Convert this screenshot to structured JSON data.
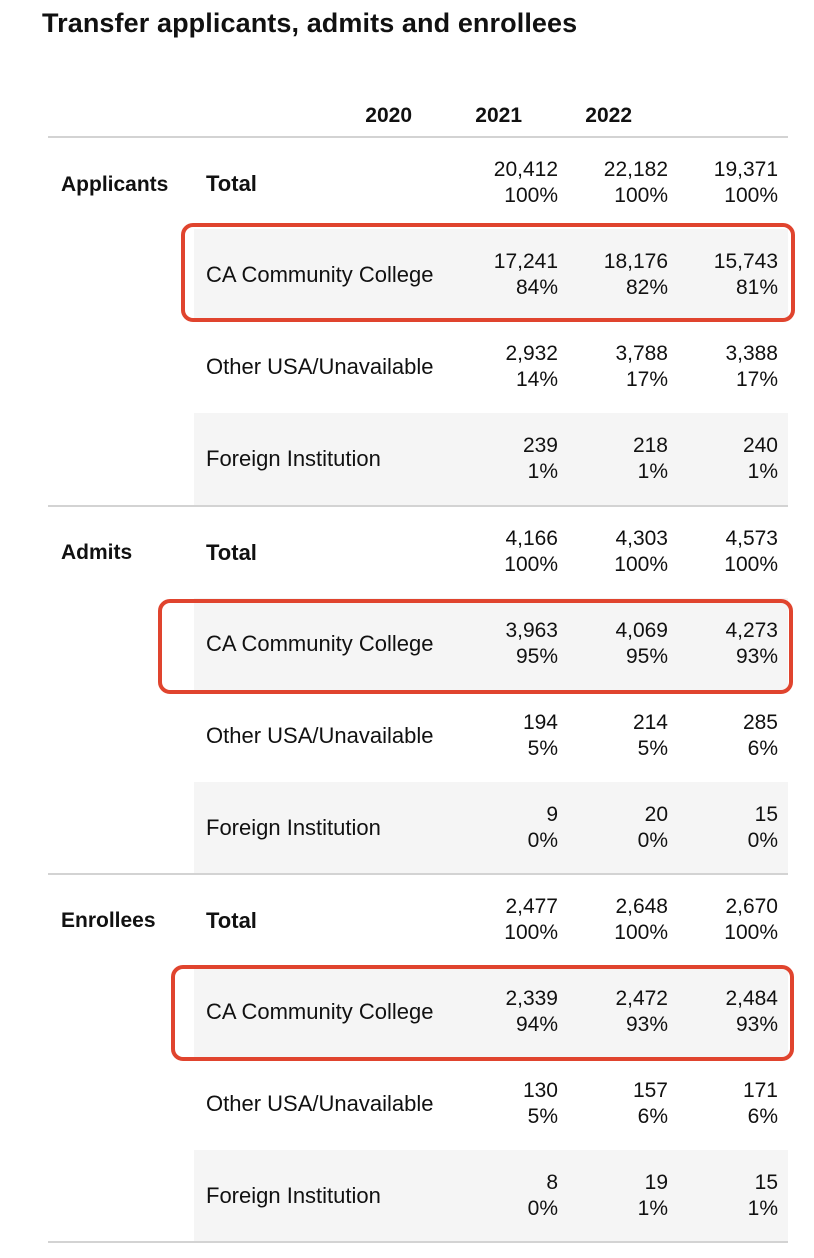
{
  "title": "Transfer applicants, admits and enrollees",
  "years": [
    "2020",
    "2021",
    "2022"
  ],
  "groups": [
    {
      "label": "Applicants",
      "rows": [
        {
          "label": "Total",
          "values": [
            [
              "20,412",
              "100%"
            ],
            [
              "22,182",
              "100%"
            ],
            [
              "19,371",
              "100%"
            ]
          ]
        },
        {
          "label": "CA Community College",
          "values": [
            [
              "17,241",
              "84%"
            ],
            [
              "18,176",
              "82%"
            ],
            [
              "15,743",
              "81%"
            ]
          ]
        },
        {
          "label": "Other USA/Unavailable",
          "values": [
            [
              "2,932",
              "14%"
            ],
            [
              "3,788",
              "17%"
            ],
            [
              "3,388",
              "17%"
            ]
          ]
        },
        {
          "label": "Foreign Institution",
          "values": [
            [
              "239",
              "1%"
            ],
            [
              "218",
              "1%"
            ],
            [
              "240",
              "1%"
            ]
          ]
        }
      ]
    },
    {
      "label": "Admits",
      "rows": [
        {
          "label": "Total",
          "values": [
            [
              "4,166",
              "100%"
            ],
            [
              "4,303",
              "100%"
            ],
            [
              "4,573",
              "100%"
            ]
          ]
        },
        {
          "label": "CA Community College",
          "values": [
            [
              "3,963",
              "95%"
            ],
            [
              "4,069",
              "95%"
            ],
            [
              "4,273",
              "93%"
            ]
          ]
        },
        {
          "label": "Other USA/Unavailable",
          "values": [
            [
              "194",
              "5%"
            ],
            [
              "214",
              "5%"
            ],
            [
              "285",
              "6%"
            ]
          ]
        },
        {
          "label": "Foreign Institution",
          "values": [
            [
              "9",
              "0%"
            ],
            [
              "20",
              "0%"
            ],
            [
              "15",
              "0%"
            ]
          ]
        }
      ]
    },
    {
      "label": "Enrollees",
      "rows": [
        {
          "label": "Total",
          "values": [
            [
              "2,477",
              "100%"
            ],
            [
              "2,648",
              "100%"
            ],
            [
              "2,670",
              "100%"
            ]
          ]
        },
        {
          "label": "CA Community College",
          "values": [
            [
              "2,339",
              "94%"
            ],
            [
              "2,472",
              "93%"
            ],
            [
              "2,484",
              "93%"
            ]
          ]
        },
        {
          "label": "Other USA/Unavailable",
          "values": [
            [
              "130",
              "5%"
            ],
            [
              "157",
              "6%"
            ],
            [
              "171",
              "6%"
            ]
          ]
        },
        {
          "label": "Foreign Institution",
          "values": [
            [
              "8",
              "0%"
            ],
            [
              "19",
              "1%"
            ],
            [
              "15",
              "1%"
            ]
          ]
        }
      ]
    }
  ],
  "highlight_color": "#e0442e",
  "shade_color": "#f5f5f5"
}
